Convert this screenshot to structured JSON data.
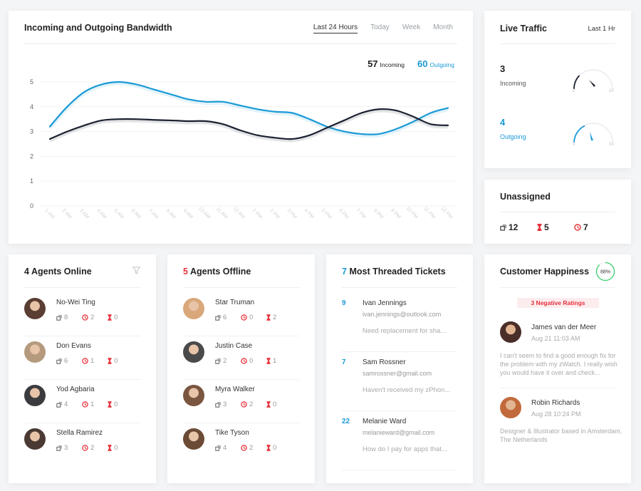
{
  "bandwidth": {
    "title": "Incoming and Outgoing Bandwidth",
    "tabs": [
      {
        "label": "Last 24 Hours",
        "active": true
      },
      {
        "label": "Today",
        "active": false
      },
      {
        "label": "Week",
        "active": false
      },
      {
        "label": "Month",
        "active": false
      }
    ],
    "incoming_total": "57",
    "incoming_label": "Incoming",
    "outgoing_total": "60",
    "outgoing_label": "Outgoing",
    "colors": {
      "incoming": "#1c2130",
      "outgoing": "#1a9ad6"
    }
  },
  "chart_data": {
    "type": "line",
    "title": "Incoming and Outgoing Bandwidth",
    "xlabel": "",
    "ylabel": "",
    "ylim": [
      0,
      5
    ],
    "yticks": [
      0,
      1,
      2,
      3,
      4,
      5
    ],
    "grid": true,
    "categories": [
      "1 AM",
      "2 AM",
      "3 AM",
      "4 AM",
      "5 AM",
      "6 AM",
      "7 AM",
      "8 AM",
      "9 AM",
      "10 AM",
      "11 AM",
      "12 AM",
      "1 PM",
      "2 PM",
      "3 PM",
      "4 PM",
      "5 PM",
      "6 PM",
      "7 PM",
      "8 PM",
      "9 PM",
      "10 PM",
      "11 PM",
      "12 PM"
    ],
    "series": [
      {
        "name": "Outgoing",
        "color": "#1a9ad6",
        "values": [
          3.2,
          4.0,
          4.6,
          4.9,
          5.0,
          4.9,
          4.7,
          4.5,
          4.3,
          4.2,
          4.2,
          4.05,
          3.9,
          3.8,
          3.75,
          3.5,
          3.2,
          3.0,
          2.9,
          2.9,
          3.1,
          3.4,
          3.75,
          3.95
        ]
      },
      {
        "name": "Incoming",
        "color": "#1c2130",
        "values": [
          2.7,
          3.0,
          3.25,
          3.45,
          3.5,
          3.5,
          3.47,
          3.45,
          3.42,
          3.42,
          3.3,
          3.05,
          2.85,
          2.75,
          2.7,
          2.85,
          3.15,
          3.45,
          3.75,
          3.9,
          3.85,
          3.6,
          3.3,
          3.25
        ]
      }
    ],
    "legend": [
      {
        "label": "Incoming",
        "value": 57
      },
      {
        "label": "Outgoing",
        "value": 60
      }
    ],
    "legend_position": "top-right"
  },
  "live_traffic": {
    "title": "Live Traffic",
    "period": "Last 1 Hr",
    "incoming": {
      "value": "3",
      "label": "Incoming",
      "min": "0",
      "max": "10",
      "color": "#1c2130"
    },
    "outgoing": {
      "value": "4",
      "label": "Outgoing",
      "min": "0",
      "max": "10",
      "color": "#1a9ad6"
    }
  },
  "unassigned": {
    "title": "Unassigned",
    "tickets": "12",
    "pending": "5",
    "overdue": "7"
  },
  "agents_online": {
    "count": "4",
    "title": "Agents Online",
    "filter_icon": "filter-icon",
    "agents": [
      {
        "name": "No-Wei Ting",
        "tickets": "8",
        "overdue": "2",
        "pending": "0",
        "avatar_color": "#5a3d33"
      },
      {
        "name": "Don Evans",
        "tickets": "6",
        "overdue": "1",
        "pending": "0",
        "avatar_color": "#b59a7e"
      },
      {
        "name": "Yod Agbaria",
        "tickets": "4",
        "overdue": "1",
        "pending": "0",
        "avatar_color": "#3b3b3f"
      },
      {
        "name": "Stella Ramirez",
        "tickets": "3",
        "overdue": "2",
        "pending": "0",
        "avatar_color": "#4a3a33"
      }
    ]
  },
  "agents_offline": {
    "count": "5",
    "title": "Agents Offline",
    "agents": [
      {
        "name": "Star Truman",
        "tickets": "6",
        "overdue": "0",
        "pending": "2",
        "avatar_color": "#d9a77a"
      },
      {
        "name": "Justin Case",
        "tickets": "2",
        "overdue": "0",
        "pending": "1",
        "avatar_color": "#4a4a4a"
      },
      {
        "name": "Myra Walker",
        "tickets": "3",
        "overdue": "2",
        "pending": "0",
        "avatar_color": "#7a5540"
      },
      {
        "name": "Tike Tyson",
        "tickets": "4",
        "overdue": "2",
        "pending": "0",
        "avatar_color": "#6b4a36"
      }
    ]
  },
  "threaded_tickets": {
    "count": "7",
    "title": "Most Threaded Tickets",
    "tickets": [
      {
        "count": "9",
        "name": "Ivan Jennings",
        "email": "ivan.jennings@outlook.com",
        "message": "Need replacement for sha..."
      },
      {
        "count": "7",
        "name": "Sam Rossner",
        "email": "samrossner@gmail.com",
        "message": "Haven't received my zPhon..."
      },
      {
        "count": "22",
        "name": "Melanie Ward",
        "email": "melanieward@gmail.com",
        "message": "How do I pay for apps that..."
      }
    ]
  },
  "customer_happiness": {
    "title": "Customer Happiness",
    "percent": "88%",
    "percent_value": 88,
    "ring_color": "#3ccf6e",
    "negative_badge": "3 Negative Ratings",
    "reviews": [
      {
        "name": "James van der Meer",
        "time": "Aug 21 11:03 AM",
        "text": "I can't seem to find a good enough fix for the problem with my zWatch. I really wish you would have it over and check...",
        "avatar_color": "#4a2f28"
      },
      {
        "name": "Robin Richards",
        "time": "Aug 28 10:24 PM",
        "text": "Designer & Illustrator based in Amsterdam, The Netherlands",
        "avatar_color": "#c26a3c"
      }
    ]
  }
}
